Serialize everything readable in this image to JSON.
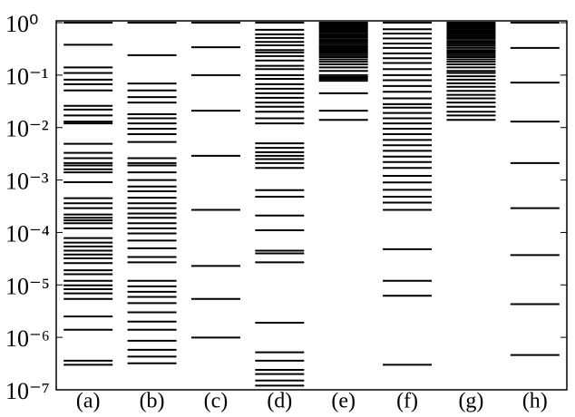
{
  "chart_data": {
    "type": "strip",
    "log_scale": true,
    "color": "#000000",
    "categories": [
      "(a)",
      "(b)",
      "(c)",
      "(d)",
      "(e)",
      "(f)",
      "(g)",
      "(h)"
    ],
    "values": [
      [
        1,
        0.38,
        0.14,
        0.11,
        0.082,
        0.067,
        0.051,
        0.026,
        0.022,
        0.017,
        0.013,
        0.012,
        0.0049,
        0.0033,
        0.0026,
        0.0021,
        0.0019,
        0.0016,
        0.0014,
        0.00091,
        0.00045,
        0.00036,
        0.00029,
        0.00022,
        0.00019,
        0.00017,
        0.00015,
        0.00012,
        7.8e-05,
        6.4e-05,
        5.4e-05,
        4.5e-05,
        3.8e-05,
        3.2e-05,
        2.6e-05,
        1.9e-05,
        1.6e-05,
        1.2e-05,
        9.8e-06,
        8.3e-06,
        6.9e-06,
        5.4e-06,
        2.5e-06,
        1.4e-06,
        3.6e-07,
        3e-07
      ],
      [
        1,
        0.24,
        0.069,
        0.051,
        0.038,
        0.03,
        0.018,
        0.015,
        0.012,
        0.0095,
        0.0075,
        0.0053,
        0.0026,
        0.0021,
        0.0019,
        0.0014,
        0.001,
        0.00075,
        0.00061,
        0.00046,
        0.00036,
        0.00029,
        0.00023,
        0.00019,
        0.00015,
        0.00012,
        9.6e-05,
        7e-05,
        5e-05,
        3.4e-05,
        2.7e-05,
        1.2e-05,
        9.4e-06,
        7.4e-06,
        5.9e-06,
        4.5e-06,
        3e-06,
        2e-06,
        1.4e-06,
        8.6e-07,
        5.8e-07,
        4.3e-07,
        3.2e-07
      ],
      [
        1,
        0.34,
        0.1,
        0.021,
        0.0029,
        0.00027,
        2.3e-05,
        5.4e-06,
        9.9e-07
      ],
      [
        1,
        0.73,
        0.6,
        0.51,
        0.43,
        0.37,
        0.3,
        0.27,
        0.23,
        0.19,
        0.15,
        0.13,
        0.1,
        0.085,
        0.067,
        0.055,
        0.045,
        0.037,
        0.03,
        0.025,
        0.02,
        0.015,
        0.012,
        0.005,
        0.0041,
        0.0034,
        0.0029,
        0.0025,
        0.0021,
        0.0017,
        0.00064,
        0.00048,
        0.00021,
        0.00011,
        4.5e-05,
        4e-05,
        2.7e-05,
        1.9e-06,
        5.2e-07,
        3.6e-07,
        2.4e-07,
        2e-07,
        1.5e-07,
        1.2e-07
      ],
      [
        1,
        0.95,
        0.9,
        0.85,
        0.8,
        0.75,
        0.7,
        0.65,
        0.6,
        0.56,
        0.52,
        0.48,
        0.45,
        0.42,
        0.39,
        0.36,
        0.34,
        0.32,
        0.3,
        0.28,
        0.26,
        0.24,
        0.22,
        0.2,
        0.18,
        0.16,
        0.14,
        0.12,
        0.1,
        0.092,
        0.085,
        0.078,
        0.045,
        0.021,
        0.014
      ],
      [
        1,
        0.75,
        0.62,
        0.5,
        0.4,
        0.33,
        0.26,
        0.21,
        0.17,
        0.13,
        0.1,
        0.08,
        0.062,
        0.048,
        0.036,
        0.028,
        0.024,
        0.019,
        0.015,
        0.012,
        0.0095,
        0.0075,
        0.0058,
        0.0046,
        0.0036,
        0.0028,
        0.0022,
        0.0017,
        0.0012,
        0.0009,
        0.00065,
        0.00048,
        0.00037,
        0.00027,
        4.8e-05,
        1.2e-05,
        6.2e-06,
        3e-07
      ],
      [
        1,
        0.94,
        0.88,
        0.82,
        0.76,
        0.71,
        0.66,
        0.61,
        0.57,
        0.53,
        0.49,
        0.45,
        0.42,
        0.39,
        0.36,
        0.33,
        0.3,
        0.28,
        0.26,
        0.24,
        0.22,
        0.2,
        0.18,
        0.16,
        0.14,
        0.12,
        0.11,
        0.095,
        0.082,
        0.07,
        0.06,
        0.05,
        0.042,
        0.036,
        0.03,
        0.025,
        0.02,
        0.017,
        0.014
      ],
      [
        1,
        0.33,
        0.072,
        0.013,
        0.0021,
        0.00029,
        3.7e-05,
        4.3e-06,
        4.6e-07
      ]
    ],
    "ylim": [
      1e-07,
      1
    ],
    "yticks": [
      {
        "value": 1,
        "label": "10⁰"
      },
      {
        "value": 0.1,
        "label": "10⁻¹"
      },
      {
        "value": 0.01,
        "label": "10⁻²"
      },
      {
        "value": 0.001,
        "label": "10⁻³"
      },
      {
        "value": 0.0001,
        "label": "10⁻⁴"
      },
      {
        "value": 1e-05,
        "label": "10⁻⁵"
      },
      {
        "value": 1e-06,
        "label": "10⁻⁶"
      },
      {
        "value": 1e-07,
        "label": "10⁻⁷"
      }
    ]
  }
}
